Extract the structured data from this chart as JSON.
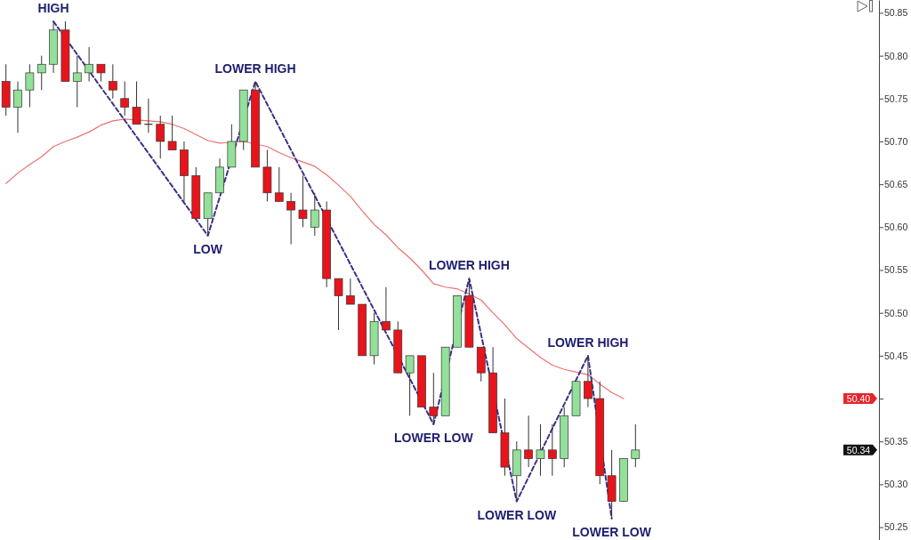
{
  "chart_data": {
    "type": "candlestick",
    "tick_labels": "y",
    "categories": [
      null,
      null,
      null,
      null,
      null,
      null,
      null,
      null,
      null,
      null,
      null,
      null,
      null,
      null,
      null,
      null,
      null,
      null,
      null,
      null,
      null,
      null,
      null,
      null,
      null,
      null,
      null,
      null,
      null,
      null,
      null,
      null,
      null,
      null,
      null,
      null,
      null,
      null,
      null,
      null,
      null,
      null,
      null,
      null,
      null,
      null,
      null,
      null,
      null,
      null,
      null,
      null,
      null,
      null,
      null,
      null,
      null,
      null,
      null,
      null,
      null,
      null,
      null,
      null,
      null,
      null,
      null,
      null,
      null,
      null,
      null,
      null,
      null,
      null
    ],
    "ohlc": [
      [
        50.77,
        50.79,
        50.73,
        50.74
      ],
      [
        50.74,
        50.77,
        50.71,
        50.76
      ],
      [
        50.76,
        50.79,
        50.74,
        50.78
      ],
      [
        50.78,
        50.8,
        50.76,
        50.79
      ],
      [
        50.79,
        50.84,
        50.78,
        50.83
      ],
      [
        50.83,
        50.84,
        50.77,
        50.77
      ],
      [
        50.77,
        50.8,
        50.74,
        50.78
      ],
      [
        50.78,
        50.81,
        50.77,
        50.79
      ],
      [
        50.79,
        50.79,
        50.77,
        50.78
      ],
      [
        50.77,
        50.79,
        50.75,
        50.76
      ],
      [
        50.75,
        50.77,
        50.73,
        50.74
      ],
      [
        50.74,
        50.77,
        50.72,
        50.72
      ],
      [
        50.72,
        50.75,
        50.71,
        50.72
      ],
      [
        50.72,
        50.73,
        50.68,
        50.7
      ],
      [
        50.7,
        50.73,
        50.69,
        50.69
      ],
      [
        50.69,
        50.7,
        50.63,
        50.66
      ],
      [
        50.66,
        50.67,
        50.61,
        50.61
      ],
      [
        50.61,
        50.64,
        50.59,
        50.64
      ],
      [
        50.64,
        50.68,
        50.64,
        50.67
      ],
      [
        50.67,
        50.72,
        50.67,
        50.7
      ],
      [
        50.7,
        50.76,
        50.69,
        50.76
      ],
      [
        50.76,
        50.77,
        50.67,
        50.67
      ],
      [
        50.67,
        50.69,
        50.63,
        50.64
      ],
      [
        50.64,
        50.67,
        50.63,
        50.63
      ],
      [
        50.63,
        50.64,
        50.58,
        50.62
      ],
      [
        50.62,
        50.66,
        50.6,
        50.61
      ],
      [
        50.6,
        50.64,
        50.59,
        50.62
      ],
      [
        50.62,
        50.63,
        50.53,
        50.54
      ],
      [
        50.54,
        50.54,
        50.48,
        50.52
      ],
      [
        50.52,
        50.54,
        50.51,
        50.51
      ],
      [
        50.51,
        50.51,
        50.45,
        50.45
      ],
      [
        50.45,
        50.5,
        50.44,
        50.49
      ],
      [
        50.49,
        50.53,
        50.48,
        50.48
      ],
      [
        50.48,
        50.49,
        50.43,
        50.43
      ],
      [
        50.43,
        50.45,
        50.38,
        50.45
      ],
      [
        50.45,
        50.45,
        50.39,
        50.39
      ],
      [
        50.39,
        50.43,
        50.37,
        50.38
      ],
      [
        50.38,
        50.46,
        50.38,
        50.46
      ],
      [
        50.46,
        50.52,
        50.46,
        50.52
      ],
      [
        50.52,
        50.54,
        50.46,
        50.46
      ],
      [
        50.46,
        50.46,
        50.42,
        50.43
      ],
      [
        50.43,
        50.46,
        50.36,
        50.36
      ],
      [
        50.36,
        50.4,
        50.31,
        50.32
      ],
      [
        50.31,
        50.35,
        50.28,
        50.34
      ],
      [
        50.34,
        50.38,
        50.32,
        50.33
      ],
      [
        50.33,
        50.37,
        50.31,
        50.34
      ],
      [
        50.34,
        50.37,
        50.31,
        50.33
      ],
      [
        50.33,
        50.39,
        50.32,
        50.38
      ],
      [
        50.38,
        50.42,
        50.38,
        50.42
      ],
      [
        50.42,
        50.45,
        50.39,
        50.4
      ],
      [
        50.4,
        50.42,
        50.3,
        50.31
      ],
      [
        50.31,
        50.34,
        50.26,
        50.28
      ],
      [
        50.28,
        50.33,
        50.28,
        50.33
      ],
      [
        50.33,
        50.37,
        50.32,
        50.34
      ],
      null,
      null,
      null,
      null,
      null,
      null,
      null,
      null,
      null,
      null,
      null,
      null,
      null,
      null,
      null,
      null,
      null,
      null,
      null,
      null
    ],
    "series": [
      {
        "type": "line",
        "color": "#e8736f",
        "line_style": "solid",
        "values": [
          50.651,
          50.663,
          50.673,
          50.682,
          50.694,
          50.7,
          50.705,
          50.711,
          50.719,
          50.724,
          50.726,
          null,
          50.724,
          50.723,
          50.72,
          50.715,
          50.708,
          50.701,
          50.698,
          null,
          50.7,
          null,
          50.694,
          50.687,
          50.681,
          50.676,
          50.671,
          50.661,
          50.649,
          50.636,
          50.619,
          50.603,
          50.591,
          50.576,
          50.564,
          50.55,
          50.534,
          50.53,
          50.528,
          50.522,
          50.515,
          50.5,
          50.486,
          50.47,
          50.459,
          50.448,
          50.439,
          50.434,
          50.431,
          50.428,
          50.417,
          50.407,
          50.4,
          null,
          null,
          null,
          null,
          null,
          null,
          null,
          null,
          null,
          null,
          null,
          null,
          null,
          null,
          null,
          null,
          null,
          null,
          null,
          null,
          null
        ]
      },
      {
        "type": "line",
        "color": "#3d2f86",
        "line_style": "dashed",
        "values": [
          null,
          null,
          null,
          null,
          50.84,
          null,
          null,
          null,
          null,
          null,
          null,
          null,
          null,
          null,
          null,
          null,
          null,
          50.59,
          null,
          null,
          null,
          50.77,
          null,
          null,
          null,
          null,
          null,
          null,
          null,
          null,
          null,
          null,
          null,
          null,
          null,
          null,
          50.37,
          null,
          null,
          50.54,
          null,
          null,
          null,
          50.28,
          null,
          null,
          null,
          null,
          null,
          50.45,
          null,
          50.26,
          null,
          null,
          null,
          null,
          null,
          null,
          null,
          null,
          null,
          null,
          null,
          null,
          null,
          null,
          null,
          null,
          null,
          null,
          null,
          null,
          null,
          null
        ]
      }
    ],
    "ylim": [
      50.235,
      50.865
    ],
    "yticks": [
      {
        "value": 50.25,
        "label": "50.25"
      },
      {
        "value": 50.3,
        "label": "50.30"
      },
      {
        "value": 50.35,
        "label": "50.35"
      },
      {
        "value": 50.4,
        "label": null
      },
      {
        "value": 50.45,
        "label": "50.45"
      },
      {
        "value": 50.5,
        "label": "50.50"
      },
      {
        "value": 50.55,
        "label": "50.55"
      },
      {
        "value": 50.6,
        "label": "50.60"
      },
      {
        "value": 50.65,
        "label": "50.65"
      },
      {
        "value": 50.7,
        "label": "50.70"
      },
      {
        "value": 50.75,
        "label": "50.75"
      },
      {
        "value": 50.8,
        "label": "50.80"
      },
      {
        "value": 50.85,
        "label": "50.85"
      }
    ],
    "annotations": [
      {
        "text": "HIGH",
        "y": 50.84
      },
      {
        "text": "LOW",
        "y": 50.59
      },
      {
        "text": "LOWER HIGH",
        "y": 50.77
      },
      {
        "text": "LOWER LOW",
        "y": 50.37
      },
      {
        "text": "LOWER HIGH",
        "y": 50.54
      },
      {
        "text": "LOWER LOW",
        "y": 50.28
      },
      {
        "text": "LOWER HIGH",
        "y": 50.45
      },
      {
        "text": "LOWER LOW",
        "y": 50.26
      },
      {
        "text": "50.40",
        "y": 50.4
      },
      {
        "text": "50.34",
        "y": 50.34
      }
    ]
  }
}
